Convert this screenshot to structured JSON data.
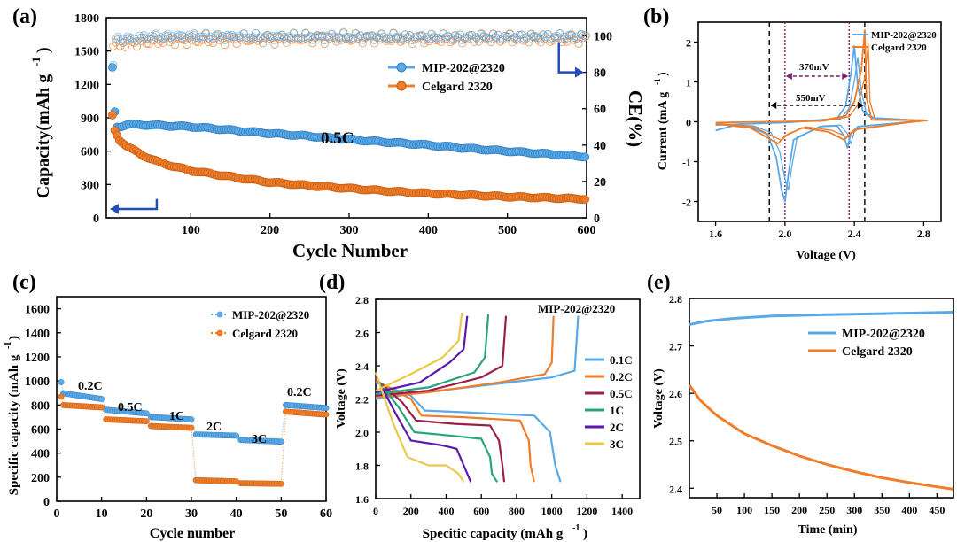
{
  "colors": {
    "blue": "#5aa9e6",
    "orange": "#ef7d2a",
    "blue_dark": "#1f4fb4",
    "purple": "#7b1f6a",
    "green": "#2aa57a",
    "violet": "#5b1aa8",
    "yellow": "#ecc84a",
    "maroon": "#9a1e4a"
  },
  "chart_data": [
    {
      "panel": "(a)",
      "type": "scatter",
      "xlabel": "Cycle Number",
      "ylabel": "Capacity(mAh g-1)",
      "y2label": "CE(%)",
      "xlim": [
        0,
        600
      ],
      "ylim": [
        0,
        1800
      ],
      "y2lim": [
        0,
        110
      ],
      "xticks": [
        100,
        200,
        300,
        400,
        500,
        600
      ],
      "yticks": [
        0,
        300,
        600,
        900,
        1200,
        1500,
        1800
      ],
      "y2ticks": [
        0,
        20,
        40,
        60,
        80,
        100
      ],
      "annotation": "0.5C",
      "series": [
        {
          "name": "MIP-202@2320",
          "color": "blue",
          "capacity": [
            [
              1,
              1350
            ],
            [
              5,
              820
            ],
            [
              10,
              820
            ],
            [
              20,
              840
            ],
            [
              50,
              835
            ],
            [
              100,
              820
            ],
            [
              150,
              790
            ],
            [
              200,
              760
            ],
            [
              250,
              735
            ],
            [
              300,
              705
            ],
            [
              350,
              680
            ],
            [
              400,
              655
            ],
            [
              450,
              625
            ],
            [
              500,
              600
            ],
            [
              550,
              575
            ],
            [
              600,
              550
            ]
          ],
          "ce": [
            [
              1,
              80
            ],
            [
              5,
              98
            ],
            [
              50,
              99.5
            ],
            [
              100,
              99.8
            ],
            [
              200,
              99.5
            ],
            [
              300,
              99.6
            ],
            [
              400,
              99.4
            ],
            [
              500,
              99.5
            ],
            [
              600,
              99.8
            ]
          ]
        },
        {
          "name": "Celgard 2320",
          "color": "orange",
          "capacity": [
            [
              1,
              920
            ],
            [
              3,
              800
            ],
            [
              10,
              700
            ],
            [
              20,
              640
            ],
            [
              40,
              560
            ],
            [
              60,
              500
            ],
            [
              80,
              460
            ],
            [
              100,
              425
            ],
            [
              150,
              370
            ],
            [
              200,
              320
            ],
            [
              250,
              290
            ],
            [
              300,
              265
            ],
            [
              350,
              240
            ],
            [
              400,
              220
            ],
            [
              450,
              205
            ],
            [
              500,
              190
            ],
            [
              550,
              180
            ],
            [
              600,
              170
            ]
          ],
          "ce": [
            [
              1,
              95
            ],
            [
              10,
              96
            ],
            [
              50,
              97.5
            ],
            [
              100,
              98
            ],
            [
              200,
              98.5
            ],
            [
              300,
              99
            ],
            [
              400,
              98.5
            ],
            [
              500,
              99
            ],
            [
              600,
              98.5
            ]
          ]
        }
      ]
    },
    {
      "panel": "(b)",
      "type": "line",
      "xlabel": "Voltage (V)",
      "ylabel": "Current (mA g-1)",
      "xlim": [
        1.5,
        2.9
      ],
      "ylim": [
        -2.5,
        2.5
      ],
      "xticks": [
        1.6,
        2.0,
        2.4,
        2.8
      ],
      "yticks": [
        -2,
        -1,
        0,
        1,
        2
      ],
      "annotations": [
        "370mV",
        "550mV"
      ],
      "vlines": [
        1.91,
        2.0,
        2.37,
        2.46
      ],
      "series": [
        {
          "name": "MIP-202@2320",
          "color": "blue",
          "points": [
            [
              1.6,
              -0.22
            ],
            [
              1.7,
              -0.1
            ],
            [
              1.8,
              -0.12
            ],
            [
              1.9,
              -0.32
            ],
            [
              1.95,
              -0.9
            ],
            [
              1.98,
              -1.7
            ],
            [
              2.0,
              -2.0
            ],
            [
              2.02,
              -1.3
            ],
            [
              2.05,
              -0.45
            ],
            [
              2.2,
              -0.12
            ],
            [
              2.3,
              -0.1
            ],
            [
              2.34,
              -0.35
            ],
            [
              2.36,
              -0.65
            ],
            [
              2.38,
              -0.3
            ],
            [
              2.42,
              -0.12
            ],
            [
              2.8,
              0.03
            ],
            [
              2.5,
              0.1
            ],
            [
              2.45,
              0.25
            ],
            [
              2.42,
              0.9
            ],
            [
              2.4,
              1.9
            ],
            [
              2.38,
              1.2
            ],
            [
              2.35,
              0.4
            ],
            [
              2.3,
              0.08
            ],
            [
              2.0,
              -0.02
            ],
            [
              1.6,
              -0.08
            ]
          ]
        },
        {
          "name": "Celgard 2320",
          "color": "orange",
          "points": [
            [
              1.6,
              -0.05
            ],
            [
              1.8,
              -0.15
            ],
            [
              1.92,
              -0.45
            ],
            [
              1.96,
              -0.55
            ],
            [
              2.0,
              -0.35
            ],
            [
              2.1,
              -0.15
            ],
            [
              2.25,
              -0.25
            ],
            [
              2.34,
              -0.45
            ],
            [
              2.4,
              -0.2
            ],
            [
              2.8,
              0.04
            ],
            [
              2.5,
              0.05
            ],
            [
              2.47,
              0.6
            ],
            [
              2.46,
              2.3
            ],
            [
              2.44,
              1.3
            ],
            [
              2.4,
              0.5
            ],
            [
              2.35,
              0.15
            ],
            [
              2.2,
              0.02
            ],
            [
              1.6,
              -0.02
            ]
          ]
        }
      ]
    },
    {
      "panel": "(c)",
      "type": "scatter",
      "xlabel": "Cycle number",
      "ylabel": "Specific capacity (mAh g-1)",
      "xlim": [
        0,
        60
      ],
      "ylim": [
        0,
        1700
      ],
      "xticks": [
        0,
        10,
        20,
        30,
        40,
        50,
        60
      ],
      "yticks": [
        0,
        200,
        400,
        600,
        800,
        1000,
        1200,
        1400,
        1600
      ],
      "rate_labels": [
        "0.2C",
        "0.5C",
        "1C",
        "2C",
        "3C",
        "0.2C"
      ],
      "series": [
        {
          "name": "MIP-202@2320",
          "color": "blue",
          "steps": [
            [
              1,
              10,
              900,
              850
            ],
            [
              11,
              20,
              760,
              730
            ],
            [
              21,
              30,
              700,
              680
            ],
            [
              31,
              40,
              555,
              545
            ],
            [
              41,
              50,
              510,
              495
            ],
            [
              51,
              60,
              800,
              775
            ]
          ]
        },
        {
          "name": "Celgard 2320",
          "color": "orange",
          "steps": [
            [
              1,
              10,
              800,
              780
            ],
            [
              11,
              20,
              680,
              665
            ],
            [
              21,
              30,
              625,
              610
            ],
            [
              31,
              40,
              175,
              165
            ],
            [
              41,
              50,
              150,
              145
            ],
            [
              51,
              60,
              745,
              720
            ]
          ]
        }
      ]
    },
    {
      "panel": "(d)",
      "type": "line",
      "title": "MIP-202@2320",
      "xlabel": "Specitic capacity (mAh g-1)",
      "ylabel": "Voltage (V)",
      "xlim": [
        0,
        1500
      ],
      "ylim": [
        1.6,
        2.8
      ],
      "xticks": [
        0,
        200,
        400,
        600,
        800,
        1000,
        1200,
        1400
      ],
      "yticks": [
        1.6,
        1.8,
        2.0,
        2.2,
        2.4,
        2.6,
        2.8
      ],
      "series": [
        {
          "name": "0.1C",
          "color": "blue",
          "charge": [
            [
              0,
              2.2
            ],
            [
              200,
              2.23
            ],
            [
              600,
              2.28
            ],
            [
              1000,
              2.33
            ],
            [
              1130,
              2.37
            ],
            [
              1150,
              2.7
            ]
          ],
          "discharge": [
            [
              0,
              2.3
            ],
            [
              200,
              2.22
            ],
            [
              280,
              2.13
            ],
            [
              500,
              2.12
            ],
            [
              900,
              2.1
            ],
            [
              990,
              2.0
            ],
            [
              1020,
              1.8
            ],
            [
              1050,
              1.7
            ]
          ]
        },
        {
          "name": "0.2C",
          "color": "orange",
          "charge": [
            [
              0,
              2.21
            ],
            [
              300,
              2.24
            ],
            [
              700,
              2.3
            ],
            [
              960,
              2.35
            ],
            [
              1000,
              2.42
            ],
            [
              1010,
              2.7
            ]
          ],
          "discharge": [
            [
              0,
              2.31
            ],
            [
              200,
              2.2
            ],
            [
              260,
              2.1
            ],
            [
              500,
              2.09
            ],
            [
              820,
              2.07
            ],
            [
              870,
              1.95
            ],
            [
              880,
              1.8
            ],
            [
              900,
              1.7
            ]
          ]
        },
        {
          "name": "0.5C",
          "color": "maroon",
          "charge": [
            [
              0,
              2.22
            ],
            [
              300,
              2.25
            ],
            [
              600,
              2.33
            ],
            [
              720,
              2.4
            ],
            [
              740,
              2.7
            ]
          ],
          "discharge": [
            [
              0,
              2.32
            ],
            [
              150,
              2.18
            ],
            [
              230,
              2.07
            ],
            [
              450,
              2.05
            ],
            [
              650,
              2.04
            ],
            [
              700,
              1.95
            ],
            [
              720,
              1.8
            ],
            [
              730,
              1.7
            ]
          ]
        },
        {
          "name": "1C",
          "color": "green",
          "charge": [
            [
              0,
              2.23
            ],
            [
              300,
              2.27
            ],
            [
              560,
              2.36
            ],
            [
              620,
              2.45
            ],
            [
              640,
              2.71
            ]
          ],
          "discharge": [
            [
              0,
              2.33
            ],
            [
              130,
              2.15
            ],
            [
              220,
              2.0
            ],
            [
              420,
              1.98
            ],
            [
              600,
              1.96
            ],
            [
              650,
              1.85
            ],
            [
              660,
              1.75
            ],
            [
              690,
              1.7
            ]
          ]
        },
        {
          "name": "2C",
          "color": "violet",
          "charge": [
            [
              0,
              2.24
            ],
            [
              250,
              2.3
            ],
            [
              420,
              2.42
            ],
            [
              500,
              2.5
            ],
            [
              520,
              2.7
            ]
          ],
          "discharge": [
            [
              0,
              2.34
            ],
            [
              120,
              2.1
            ],
            [
              200,
              1.95
            ],
            [
              380,
              1.92
            ],
            [
              460,
              1.9
            ],
            [
              500,
              1.8
            ],
            [
              540,
              1.7
            ]
          ]
        },
        {
          "name": "3C",
          "color": "yellow",
          "charge": [
            [
              0,
              2.25
            ],
            [
              200,
              2.35
            ],
            [
              380,
              2.45
            ],
            [
              470,
              2.55
            ],
            [
              490,
              2.72
            ]
          ],
          "discharge": [
            [
              0,
              2.36
            ],
            [
              100,
              2.05
            ],
            [
              180,
              1.85
            ],
            [
              300,
              1.8
            ],
            [
              400,
              1.8
            ],
            [
              470,
              1.75
            ],
            [
              500,
              1.7
            ]
          ]
        }
      ]
    },
    {
      "panel": "(e)",
      "type": "line",
      "xlabel": "Time (min)",
      "ylabel": "Voltage (V)",
      "xlim": [
        0,
        480
      ],
      "ylim": [
        2.38,
        2.8
      ],
      "xticks": [
        50,
        100,
        150,
        200,
        250,
        300,
        350,
        400,
        450
      ],
      "yticks": [
        2.4,
        2.5,
        2.6,
        2.7,
        2.8
      ],
      "series": [
        {
          "name": "MIP-202@2320",
          "color": "blue",
          "points": [
            [
              0,
              2.745
            ],
            [
              30,
              2.752
            ],
            [
              80,
              2.758
            ],
            [
              150,
              2.763
            ],
            [
              250,
              2.766
            ],
            [
              350,
              2.768
            ],
            [
              480,
              2.771
            ]
          ]
        },
        {
          "name": "Celgard 2320",
          "color": "orange",
          "points": [
            [
              0,
              2.617
            ],
            [
              20,
              2.585
            ],
            [
              50,
              2.553
            ],
            [
              100,
              2.515
            ],
            [
              150,
              2.49
            ],
            [
              200,
              2.468
            ],
            [
              250,
              2.45
            ],
            [
              300,
              2.435
            ],
            [
              350,
              2.422
            ],
            [
              400,
              2.412
            ],
            [
              450,
              2.403
            ],
            [
              480,
              2.398
            ]
          ]
        }
      ]
    }
  ],
  "legends": {
    "mip": "MIP-202@2320",
    "celgard": "Celgard 2320"
  },
  "text": {
    "exp_minus1": "-1",
    "panel_a": "(a)",
    "panel_b": "(b)",
    "panel_c": "(c)",
    "panel_d": "(d)",
    "panel_e": "(e)",
    "a_xlabel": "Cycle Number",
    "a_ylabel": "Capacity(mAh g",
    "a_y2label": "CE(%)",
    "a_annot": "0.5C",
    "b_xlabel": "Voltage (V)",
    "b_ylabel": "Current  (mA g",
    "b_370": "370mV",
    "b_550": "550mV",
    "c_xlabel": "Cycle number",
    "c_ylabel": "Specific capacity  (mAh g",
    "c_rates": [
      "0.2C",
      "0.5C",
      "1C",
      "2C",
      "3C",
      "0.2C"
    ],
    "d_title": "MIP-202@2320",
    "d_xlabel": "Specitic capacity (mAh g",
    "d_ylabel": "Voltage (V)",
    "e_xlabel": "Time (min)",
    "e_ylabel": "Voltage  (V)"
  }
}
